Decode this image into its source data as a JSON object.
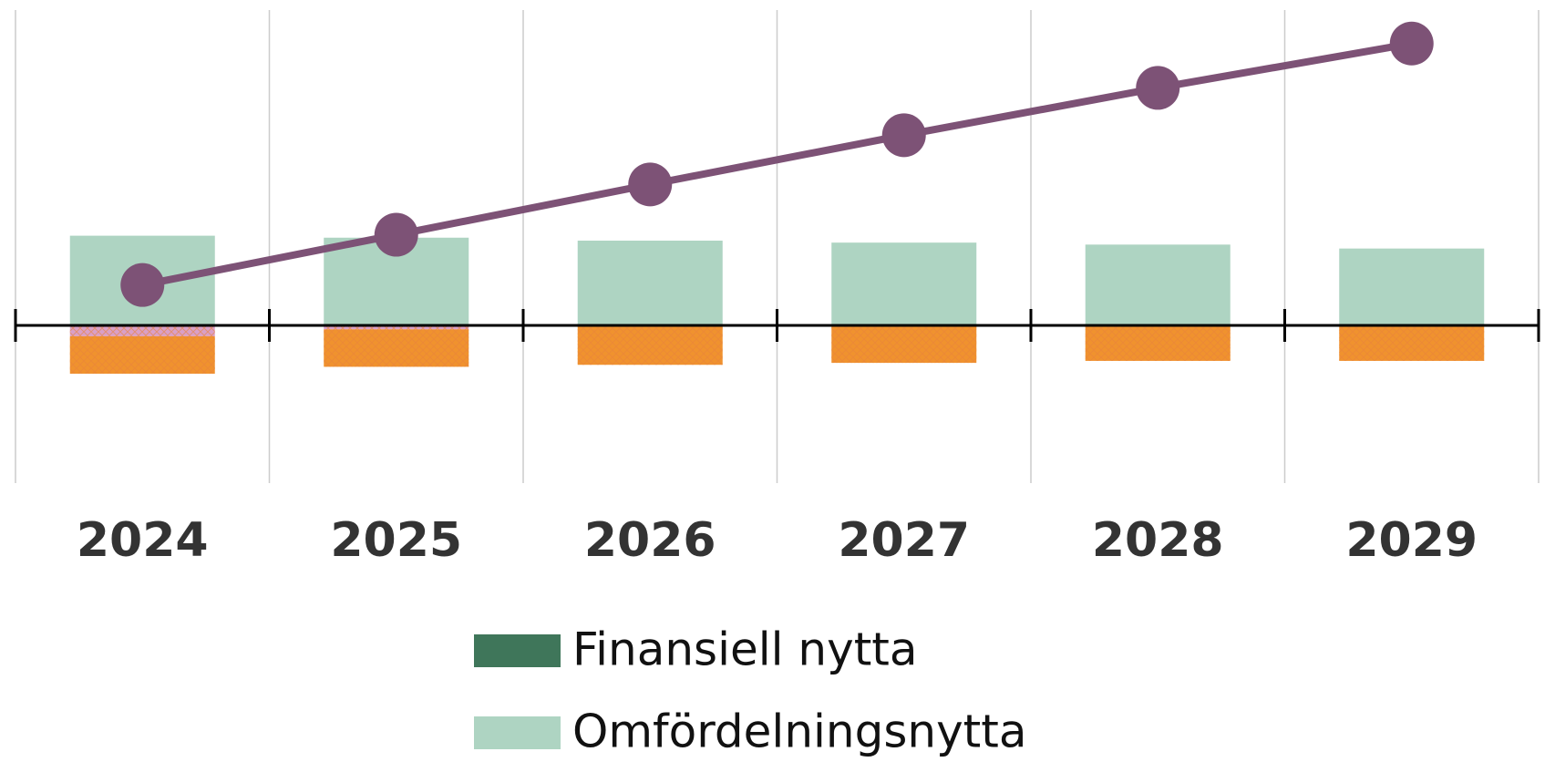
{
  "chart_data": {
    "type": "bar",
    "categories": [
      "2024",
      "2025",
      "2026",
      "2027",
      "2028",
      "2029"
    ],
    "ylim": [
      -16,
      32
    ],
    "grid": true,
    "series": [
      {
        "name": "Finansiell nytta",
        "color": "#3f765a",
        "values": [
          0,
          0,
          0,
          0,
          0,
          0
        ]
      },
      {
        "name": "Omfördelningsnytta",
        "color": "#aed4c2",
        "values": [
          9.1,
          8.9,
          8.6,
          8.4,
          8.2,
          7.8
        ]
      },
      {
        "color": "#d9a0c8",
        "values": [
          -1.1,
          -0.4,
          0,
          0,
          0,
          0
        ]
      },
      {
        "color": "#f0922e",
        "values": [
          -3.8,
          -3.8,
          -4.0,
          -3.8,
          -3.6,
          -3.6
        ]
      },
      {
        "type": "line",
        "color": "#7d5276",
        "values": [
          4.1,
          9.2,
          14.3,
          19.3,
          24.1,
          28.6
        ]
      }
    ]
  }
}
